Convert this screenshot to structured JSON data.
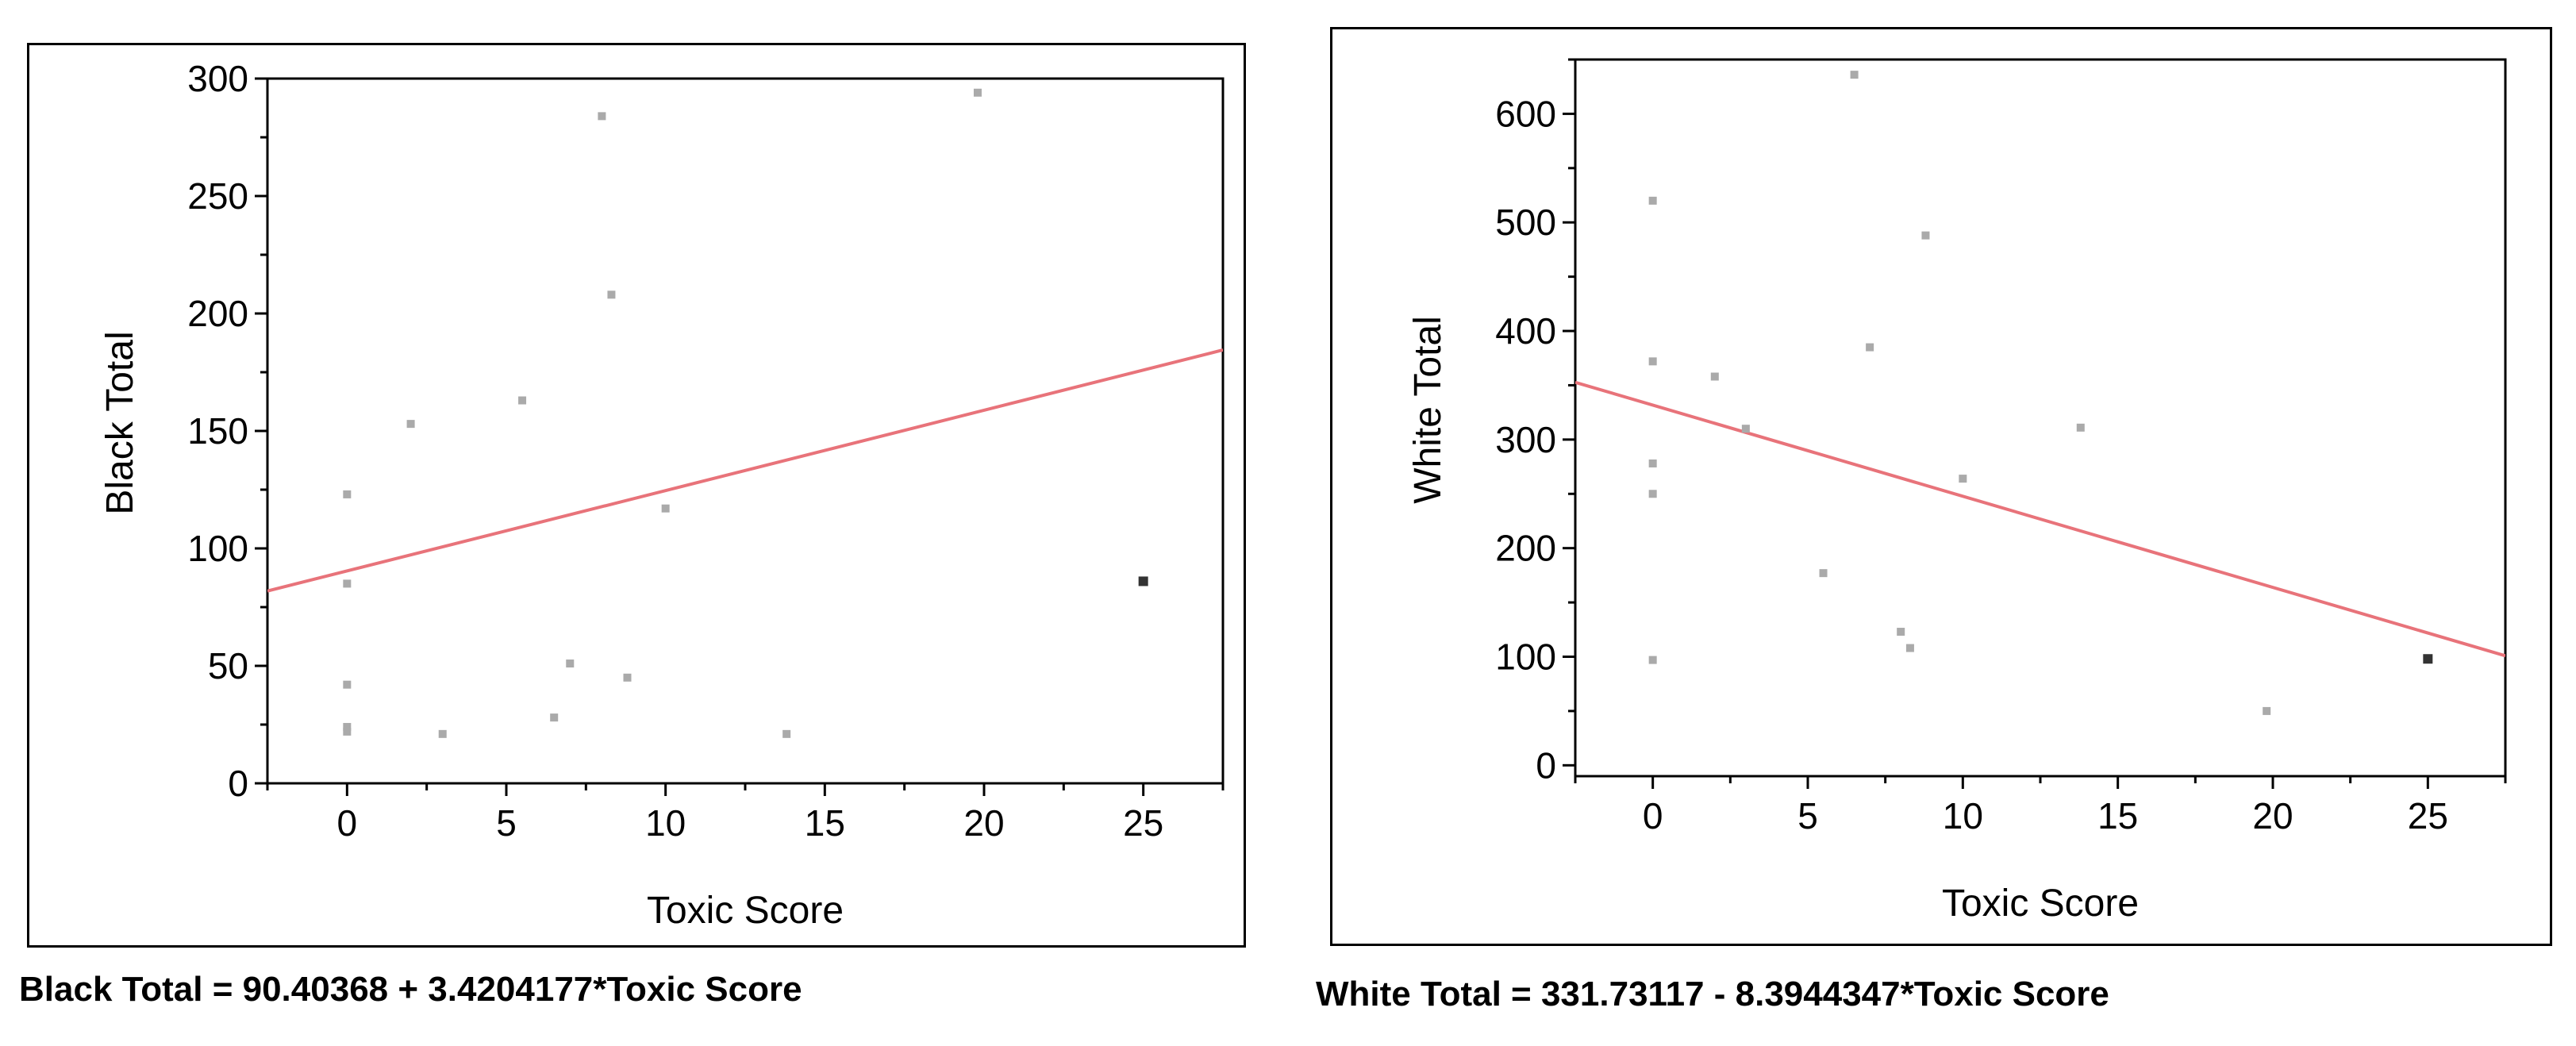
{
  "chart_data": [
    {
      "type": "scatter",
      "xlabel": "Toxic Score",
      "ylabel": "Black Total",
      "xlim": [
        -2.5,
        27.5
      ],
      "ylim": [
        0,
        300
      ],
      "xticks": [
        0,
        5,
        10,
        15,
        20,
        25
      ],
      "yticks": [
        0,
        50,
        100,
        150,
        200,
        250,
        300
      ],
      "grid": false,
      "legend": "none",
      "point_color": "#aaaaaa",
      "line_color": "#e8737a",
      "points": [
        {
          "x": 0,
          "y": 123
        },
        {
          "x": 0,
          "y": 85
        },
        {
          "x": 0,
          "y": 42
        },
        {
          "x": 0,
          "y": 24
        },
        {
          "x": 0,
          "y": 22
        },
        {
          "x": 2,
          "y": 153
        },
        {
          "x": 3,
          "y": 21
        },
        {
          "x": 5.5,
          "y": 163
        },
        {
          "x": 6.5,
          "y": 28
        },
        {
          "x": 7,
          "y": 51
        },
        {
          "x": 8,
          "y": 284
        },
        {
          "x": 8.3,
          "y": 208
        },
        {
          "x": 8.8,
          "y": 45
        },
        {
          "x": 10,
          "y": 117
        },
        {
          "x": 13.8,
          "y": 21
        },
        {
          "x": 19.8,
          "y": 294
        },
        {
          "x": 25,
          "y": 86
        }
      ],
      "fit": {
        "intercept": 90.40368,
        "slope": 3.4204177
      },
      "equation": "Black Total = 90.40368 + 3.4204177*Toxic Score"
    },
    {
      "type": "scatter",
      "xlabel": "Toxic Score",
      "ylabel": "White Total",
      "xlim": [
        -2.5,
        27.5
      ],
      "ylim": [
        -10,
        650
      ],
      "xticks": [
        0,
        5,
        10,
        15,
        20,
        25
      ],
      "yticks": [
        0,
        100,
        200,
        300,
        400,
        500,
        600
      ],
      "grid": false,
      "legend": "none",
      "point_color": "#aaaaaa",
      "line_color": "#e8737a",
      "points": [
        {
          "x": 0,
          "y": 520
        },
        {
          "x": 0,
          "y": 372
        },
        {
          "x": 0,
          "y": 278
        },
        {
          "x": 0,
          "y": 250
        },
        {
          "x": 0,
          "y": 97
        },
        {
          "x": 2,
          "y": 358
        },
        {
          "x": 3,
          "y": 310
        },
        {
          "x": 5.5,
          "y": 177
        },
        {
          "x": 6.5,
          "y": 636
        },
        {
          "x": 7,
          "y": 385
        },
        {
          "x": 8,
          "y": 123
        },
        {
          "x": 8.3,
          "y": 108
        },
        {
          "x": 8.8,
          "y": 488
        },
        {
          "x": 10,
          "y": 264
        },
        {
          "x": 13.8,
          "y": 311
        },
        {
          "x": 19.8,
          "y": 50
        },
        {
          "x": 25,
          "y": 98
        }
      ],
      "fit": {
        "intercept": 331.73117,
        "slope": -8.3944347
      },
      "equation": "White Total = 331.73117 - 8.3944347*Toxic Score"
    }
  ]
}
